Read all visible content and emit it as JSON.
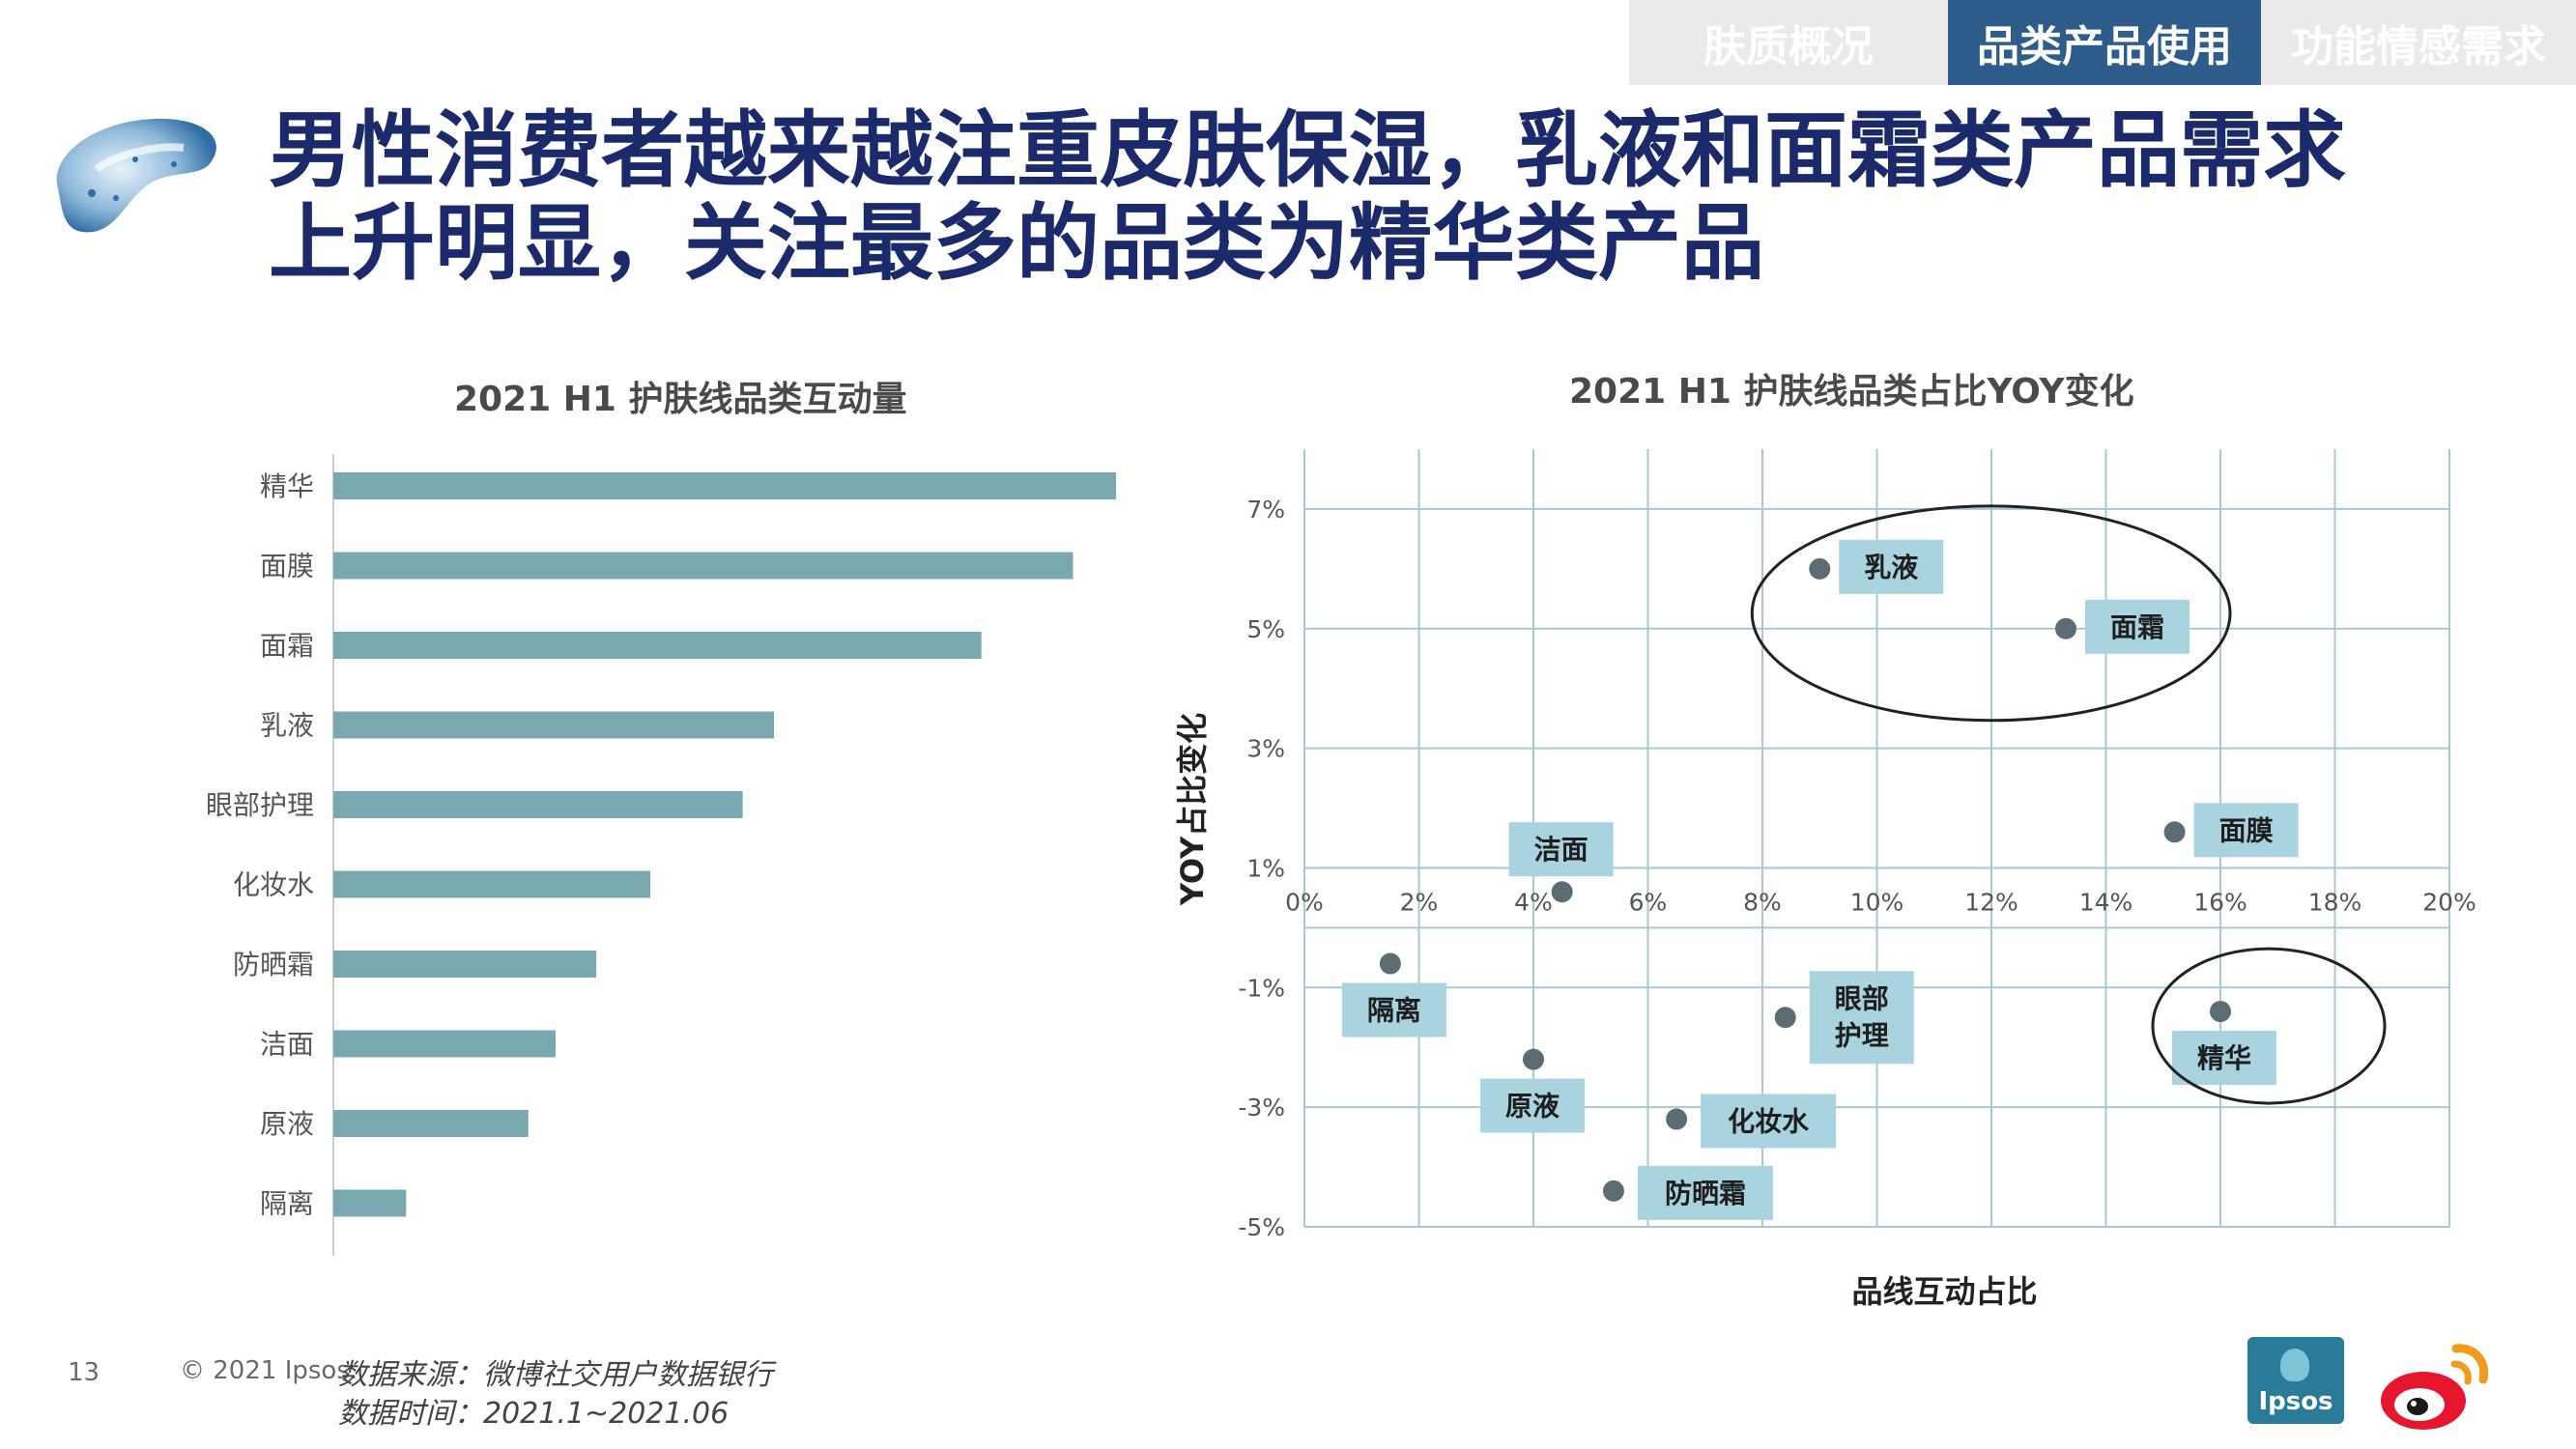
{
  "tabs": [
    {
      "label": "肤质概况",
      "active": false
    },
    {
      "label": "品类产品使用",
      "active": true
    },
    {
      "label": "功能情感需求",
      "active": false
    }
  ],
  "headline": {
    "line1": "男性消费者越来越注重皮肤保湿，乳液和面霜类产品需求",
    "line2": "上升明显，关注最多的品类为精华类产品"
  },
  "colors": {
    "navy": "#1b2a6b",
    "tab_active": "#2e5d8c",
    "bar": "#7aa8b0",
    "label_box": "#a9d3de",
    "point": "#5b6c72"
  },
  "chart_data": [
    {
      "type": "bar",
      "orientation": "horizontal",
      "title": "2021 H1 护肤线品类互动量",
      "categories": [
        "精华",
        "面膜",
        "面霜",
        "乳液",
        "眼部护理",
        "化妆水",
        "防晒霜",
        "洁面",
        "原液",
        "隔离"
      ],
      "values": [
        100,
        94.5,
        82.8,
        56.3,
        52.3,
        40.5,
        33.6,
        28.4,
        24.9,
        9.3
      ],
      "value_unit": "relative (no axis shown)",
      "xlabel": "",
      "ylabel": ""
    },
    {
      "type": "scatter",
      "title": "2021 H1 护肤线品类占比YOY变化",
      "xlabel": "品线互动占比",
      "ylabel": "YOY占比变化",
      "xlim": [
        0,
        20
      ],
      "ylim": [
        -5,
        8
      ],
      "x_ticks": [
        "0%",
        "2%",
        "4%",
        "6%",
        "8%",
        "10%",
        "12%",
        "14%",
        "16%",
        "18%",
        "20%"
      ],
      "y_ticks": [
        "7%",
        "5%",
        "3%",
        "1%",
        "-1%",
        "-3%",
        "-5%"
      ],
      "grid": true,
      "points": [
        {
          "name": "乳液",
          "x": 9.0,
          "y": 6.0
        },
        {
          "name": "面霜",
          "x": 13.3,
          "y": 5.0
        },
        {
          "name": "面膜",
          "x": 15.2,
          "y": 1.6
        },
        {
          "name": "洁面",
          "x": 4.5,
          "y": 0.6
        },
        {
          "name": "隔离",
          "x": 1.5,
          "y": -0.6
        },
        {
          "name": "眼部护理",
          "x": 8.4,
          "y": -1.5
        },
        {
          "name": "精华",
          "x": 16.0,
          "y": -1.4
        },
        {
          "name": "原液",
          "x": 4.0,
          "y": -2.2
        },
        {
          "name": "化妆水",
          "x": 6.5,
          "y": -3.2
        },
        {
          "name": "防晒霜",
          "x": 5.4,
          "y": -4.4
        }
      ],
      "highlight_groups": [
        [
          "乳液",
          "面霜"
        ],
        [
          "精华"
        ]
      ]
    }
  ],
  "footer": {
    "page_number": "13",
    "copyright": "© 2021 Ipsos.",
    "source_line1": "数据来源：微博社交用户数据银行",
    "source_line2": "数据时间：2021.1~2021.06",
    "ipsos_text": "Ipsos"
  }
}
